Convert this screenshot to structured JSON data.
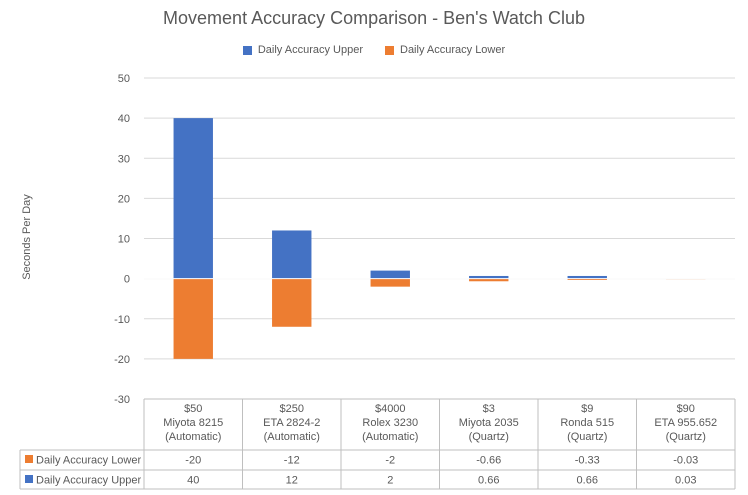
{
  "chart_data": {
    "type": "bar",
    "title": "Movement Accuracy Comparison - Ben's Watch Club",
    "ylabel": "Seconds Per Day",
    "xlabel": "",
    "ylim": [
      -30,
      50
    ],
    "yticks": [
      50,
      40,
      30,
      20,
      10,
      0,
      -10,
      -20,
      -30
    ],
    "grid": true,
    "legend_position": "top",
    "categories": [
      [
        "$50",
        "Miyota 8215",
        "(Automatic)"
      ],
      [
        "$250",
        "ETA 2824-2",
        "(Automatic)"
      ],
      [
        "$4000",
        "Rolex 3230",
        "(Automatic)"
      ],
      [
        "$3",
        "Miyota 2035",
        "(Quartz)"
      ],
      [
        "$9",
        "Ronda 515",
        "(Quartz)"
      ],
      [
        "$90",
        "ETA 955.652",
        "(Quartz)"
      ]
    ],
    "series": [
      {
        "name": "Daily Accuracy Upper",
        "color": "#4472C4",
        "values": [
          40,
          12,
          2,
          0.66,
          0.66,
          0.03
        ],
        "labels": [
          "40",
          "12",
          "2",
          "0.66",
          "0.66",
          "0.03"
        ]
      },
      {
        "name": "Daily Accuracy Lower",
        "color": "#ED7D31",
        "values": [
          -20,
          -12,
          -2,
          -0.66,
          -0.33,
          -0.03
        ],
        "labels": [
          "-20",
          "-12",
          "-2",
          "-0.66",
          "-0.33",
          "-0.03"
        ]
      }
    ],
    "table_row_order": [
      "Daily Accuracy Lower",
      "Daily Accuracy Upper"
    ]
  }
}
